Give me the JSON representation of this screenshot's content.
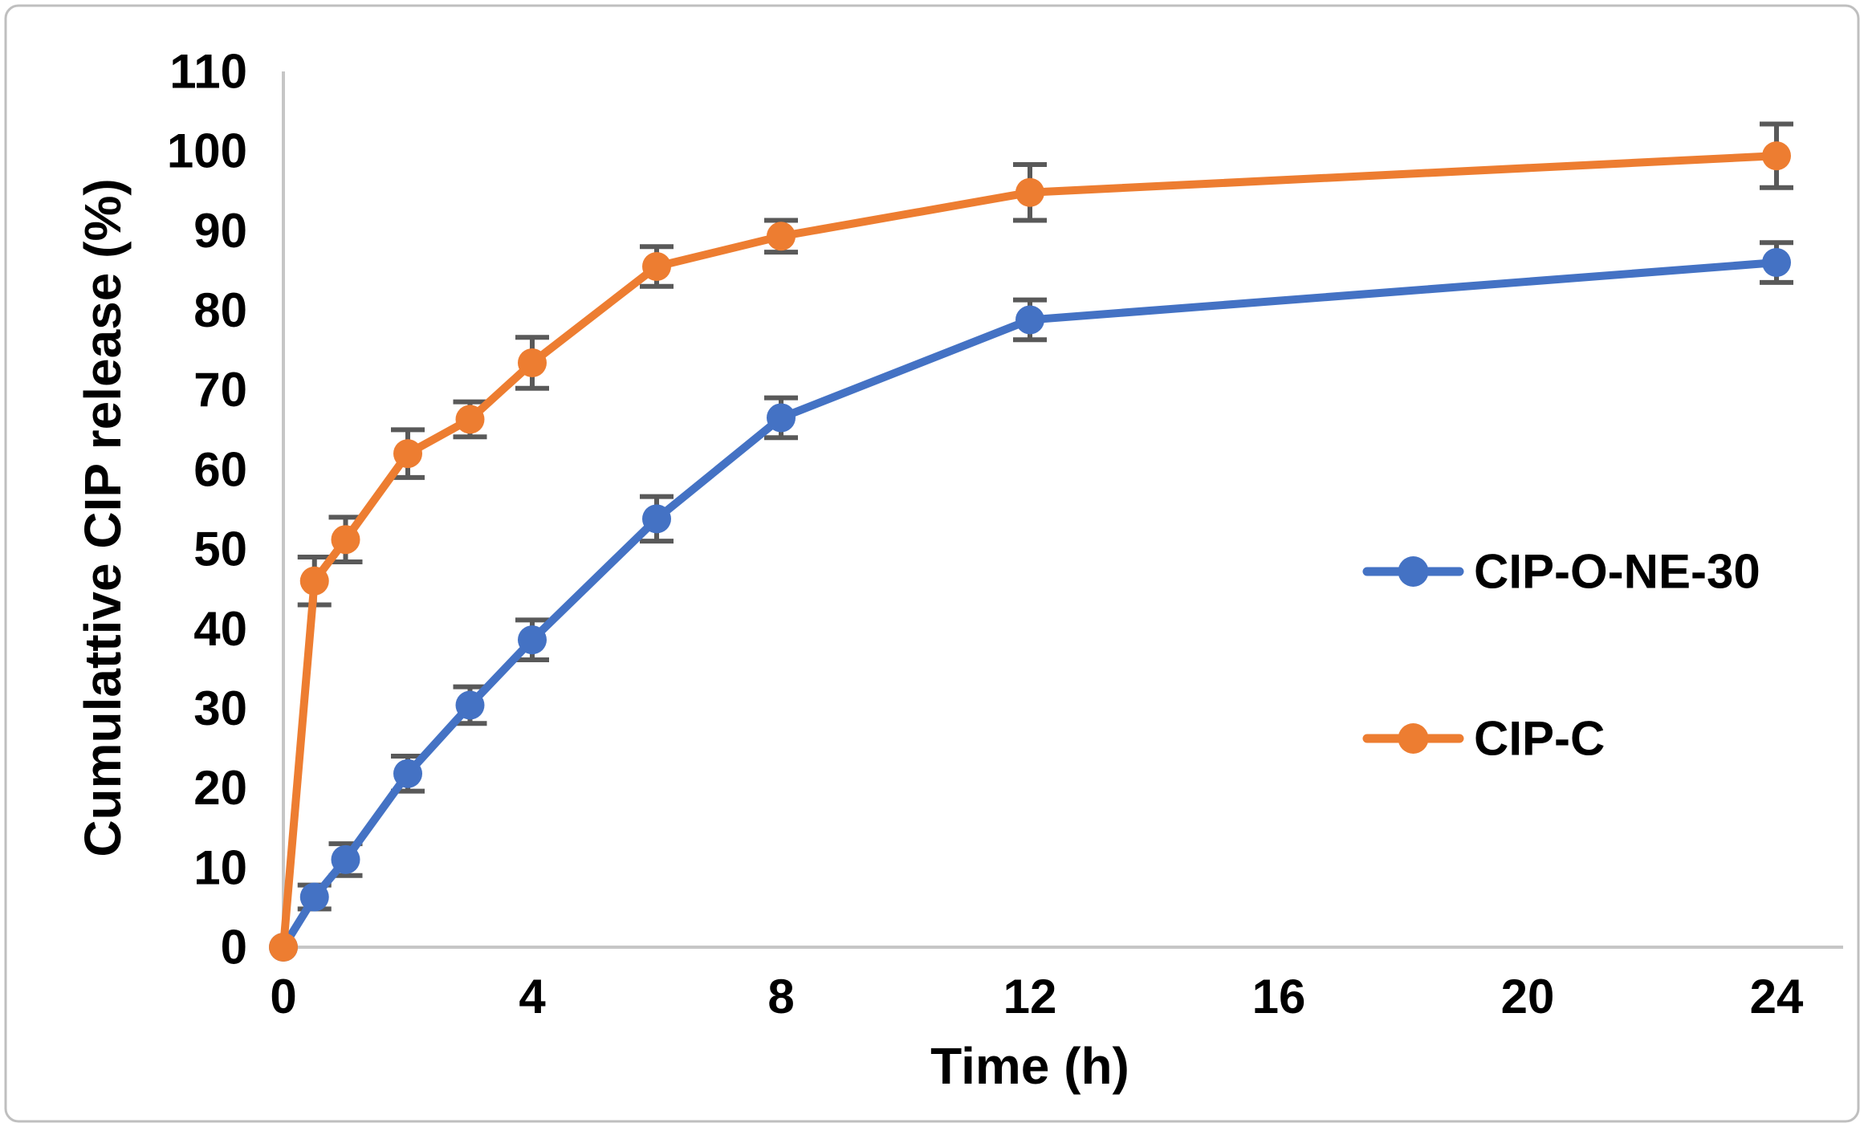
{
  "chart_data": {
    "type": "line",
    "title": "",
    "xlabel": "Time (h)",
    "ylabel": "Cumulattive CIP release (%)",
    "x": [
      0,
      0.5,
      1,
      2,
      3,
      4,
      6,
      8,
      12,
      24
    ],
    "series": [
      {
        "name": "CIP-O-NE-30",
        "color": "#4472C4",
        "values": [
          0,
          6.3,
          11,
          21.8,
          30.4,
          38.6,
          53.8,
          66.5,
          78.8,
          86
        ],
        "errors": [
          0,
          1.5,
          2,
          2.2,
          2.3,
          2.5,
          2.8,
          2.5,
          2.5,
          2.5
        ]
      },
      {
        "name": "CIP-C",
        "color": "#ED7D31",
        "values": [
          0,
          46,
          51.2,
          62,
          66.3,
          73.4,
          85.5,
          89.3,
          94.8,
          99.4
        ],
        "errors": [
          0,
          3,
          2.8,
          3,
          2.2,
          3.2,
          2.5,
          2,
          3.5,
          4
        ]
      }
    ],
    "x_ticks": [
      0,
      4,
      8,
      12,
      16,
      20,
      24
    ],
    "y_ticks": [
      0,
      10,
      20,
      30,
      40,
      50,
      60,
      70,
      80,
      90,
      100,
      110
    ],
    "xlim": [
      0,
      24
    ],
    "ylim": [
      0,
      110
    ],
    "grid": false,
    "legend_position": "right-center",
    "error_bar_color": "#595959",
    "axis_line_color": "#C6C6C6",
    "border_color": "#BFBFBF",
    "text_color": "#000000"
  }
}
